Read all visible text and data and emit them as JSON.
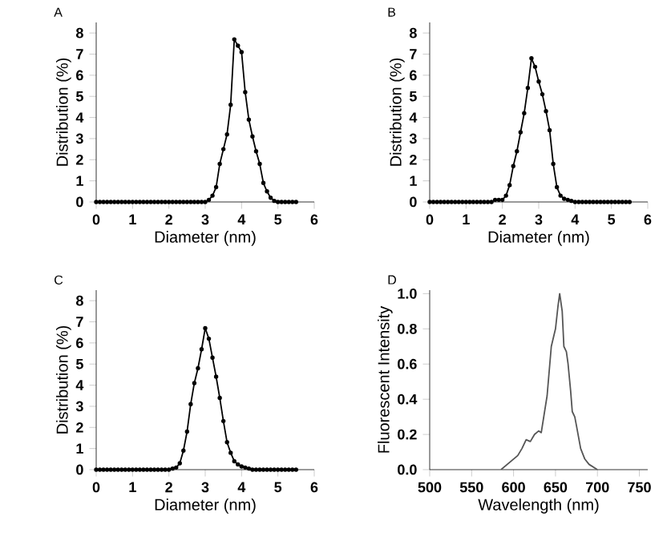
{
  "chart_data": [
    {
      "type": "line",
      "title": "A",
      "xlabel": "Diameter (nm)",
      "ylabel": "Distribution (%)",
      "marker": "circle",
      "grid": false,
      "x": [
        0,
        0.1,
        0.2,
        0.3,
        0.4,
        0.5,
        0.6,
        0.7,
        0.8,
        0.9,
        1.0,
        1.1,
        1.2,
        1.3,
        1.4,
        1.5,
        1.6,
        1.7,
        1.8,
        1.9,
        2.0,
        2.1,
        2.2,
        2.3,
        2.4,
        2.5,
        2.6,
        2.7,
        2.8,
        2.9,
        3.0,
        3.1,
        3.2,
        3.3,
        3.4,
        3.5,
        3.6,
        3.7,
        3.8,
        3.9,
        4.0,
        4.1,
        4.2,
        4.3,
        4.4,
        4.5,
        4.6,
        4.7,
        4.8,
        4.9,
        5.0,
        5.1,
        5.2,
        5.3,
        5.4,
        5.5
      ],
      "series": [
        {
          "color": "#000000",
          "values": [
            0,
            0,
            0,
            0,
            0,
            0,
            0,
            0,
            0,
            0,
            0,
            0,
            0,
            0,
            0,
            0,
            0,
            0,
            0,
            0,
            0,
            0,
            0,
            0,
            0,
            0,
            0,
            0,
            0,
            0,
            0,
            0.1,
            0.3,
            0.7,
            1.8,
            2.5,
            3.2,
            4.6,
            7.7,
            7.4,
            7.1,
            5.2,
            3.9,
            3.1,
            2.4,
            1.8,
            0.9,
            0.5,
            0.2,
            0.05,
            0,
            0,
            0,
            0,
            0,
            0
          ]
        }
      ],
      "xlim": [
        0,
        6
      ],
      "ylim": [
        0,
        8.5
      ],
      "xticks": [
        0,
        1,
        2,
        3,
        4,
        5,
        6
      ],
      "yticks": [
        0,
        1,
        2,
        3,
        4,
        5,
        6,
        7,
        8
      ]
    },
    {
      "type": "line",
      "title": "B",
      "xlabel": "Diameter (nm)",
      "ylabel": "Distribution (%)",
      "marker": "circle",
      "grid": false,
      "x": [
        0,
        0.1,
        0.2,
        0.3,
        0.4,
        0.5,
        0.6,
        0.7,
        0.8,
        0.9,
        1.0,
        1.1,
        1.2,
        1.3,
        1.4,
        1.5,
        1.6,
        1.7,
        1.8,
        1.9,
        2.0,
        2.1,
        2.2,
        2.3,
        2.4,
        2.5,
        2.6,
        2.7,
        2.8,
        2.9,
        3.0,
        3.1,
        3.2,
        3.3,
        3.4,
        3.5,
        3.6,
        3.7,
        3.8,
        3.9,
        4.0,
        4.1,
        4.2,
        4.3,
        4.4,
        4.5,
        4.6,
        4.7,
        4.8,
        4.9,
        5.0,
        5.1,
        5.2,
        5.3,
        5.4,
        5.5
      ],
      "series": [
        {
          "color": "#000000",
          "values": [
            0,
            0,
            0,
            0,
            0,
            0,
            0,
            0,
            0,
            0,
            0,
            0,
            0,
            0,
            0,
            0,
            0,
            0,
            0.1,
            0.1,
            0.1,
            0.3,
            0.8,
            1.7,
            2.4,
            3.3,
            4.2,
            5.4,
            6.8,
            6.4,
            5.7,
            5.1,
            4.3,
            3.4,
            1.8,
            0.7,
            0.3,
            0.15,
            0.1,
            0.05,
            0,
            0,
            0,
            0,
            0,
            0,
            0,
            0,
            0,
            0,
            0,
            0,
            0,
            0,
            0,
            0
          ]
        }
      ],
      "xlim": [
        0,
        6
      ],
      "ylim": [
        0,
        8.5
      ],
      "xticks": [
        0,
        1,
        2,
        3,
        4,
        5,
        6
      ],
      "yticks": [
        0,
        1,
        2,
        3,
        4,
        5,
        6,
        7,
        8
      ]
    },
    {
      "type": "line",
      "title": "C",
      "xlabel": "Diameter (nm)",
      "ylabel": "Distribution (%)",
      "marker": "circle",
      "grid": false,
      "x": [
        0,
        0.1,
        0.2,
        0.3,
        0.4,
        0.5,
        0.6,
        0.7,
        0.8,
        0.9,
        1.0,
        1.1,
        1.2,
        1.3,
        1.4,
        1.5,
        1.6,
        1.7,
        1.8,
        1.9,
        2.0,
        2.1,
        2.2,
        2.3,
        2.4,
        2.5,
        2.6,
        2.7,
        2.8,
        2.9,
        3.0,
        3.1,
        3.2,
        3.3,
        3.4,
        3.5,
        3.6,
        3.7,
        3.8,
        3.9,
        4.0,
        4.1,
        4.2,
        4.3,
        4.4,
        4.5,
        4.6,
        4.7,
        4.8,
        4.9,
        5.0,
        5.1,
        5.2,
        5.3,
        5.4,
        5.5
      ],
      "series": [
        {
          "color": "#000000",
          "values": [
            0,
            0,
            0,
            0,
            0,
            0,
            0,
            0,
            0,
            0,
            0,
            0,
            0,
            0,
            0,
            0,
            0,
            0,
            0,
            0,
            0,
            0.05,
            0.1,
            0.3,
            0.9,
            1.8,
            3.1,
            4.1,
            4.8,
            5.7,
            6.7,
            6.2,
            5.3,
            4.4,
            3.4,
            2.3,
            1.3,
            0.8,
            0.4,
            0.25,
            0.15,
            0.1,
            0.05,
            0,
            0,
            0,
            0,
            0,
            0,
            0,
            0,
            0,
            0,
            0,
            0,
            0
          ]
        }
      ],
      "xlim": [
        0,
        6
      ],
      "ylim": [
        0,
        8.5
      ],
      "xticks": [
        0,
        1,
        2,
        3,
        4,
        5,
        6
      ],
      "yticks": [
        0,
        1,
        2,
        3,
        4,
        5,
        6,
        7,
        8
      ]
    },
    {
      "type": "line",
      "title": "D",
      "xlabel": "Wavelength (nm)",
      "ylabel": "Fluorescent Intensity",
      "marker": "none",
      "grid": false,
      "x": [
        585,
        590,
        600,
        605,
        610,
        615,
        620,
        625,
        630,
        633,
        637,
        640,
        645,
        650,
        653,
        655,
        658,
        660,
        663,
        665,
        668,
        670,
        673,
        675,
        680,
        685,
        690,
        700
      ],
      "series": [
        {
          "color": "#555555",
          "values": [
            0,
            0.02,
            0.06,
            0.08,
            0.12,
            0.17,
            0.16,
            0.2,
            0.22,
            0.21,
            0.33,
            0.42,
            0.7,
            0.8,
            0.93,
            1.0,
            0.9,
            0.7,
            0.67,
            0.6,
            0.45,
            0.33,
            0.3,
            0.25,
            0.12,
            0.06,
            0.03,
            0
          ]
        }
      ],
      "xlim": [
        500,
        760
      ],
      "ylim": [
        0,
        1.02
      ],
      "xticks": [
        500,
        550,
        600,
        650,
        700,
        750
      ],
      "yticks": [
        {
          "value": 0,
          "label": "0.0"
        },
        {
          "value": 0.2,
          "label": "0.2"
        },
        {
          "value": 0.4,
          "label": "0.4"
        },
        {
          "value": 0.6,
          "label": "0.6"
        },
        {
          "value": 0.8,
          "label": "0.8"
        },
        {
          "value": 1,
          "label": "1.0"
        }
      ]
    }
  ]
}
